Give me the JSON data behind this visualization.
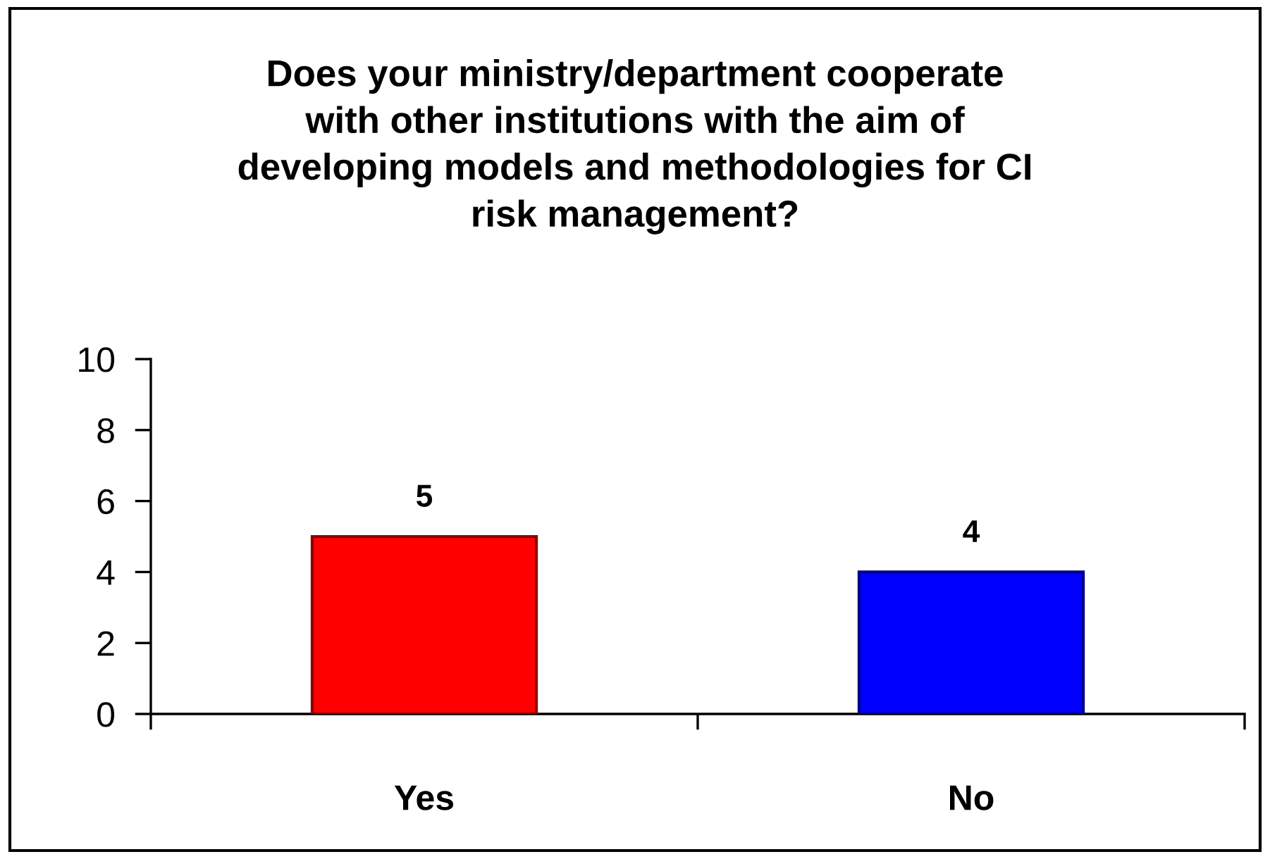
{
  "chart_data": {
    "type": "bar",
    "title": "Does your ministry/department cooperate\nwith other institutions with the aim of\ndeveloping models and methodologies for CI\nrisk management?",
    "categories": [
      "Yes",
      "No"
    ],
    "values": [
      5,
      4
    ],
    "colors": [
      "#ff0000",
      "#0000ff"
    ],
    "ylim": [
      0,
      10
    ],
    "yticks": [
      0,
      2,
      4,
      6,
      8,
      10
    ],
    "data_labels": true
  }
}
